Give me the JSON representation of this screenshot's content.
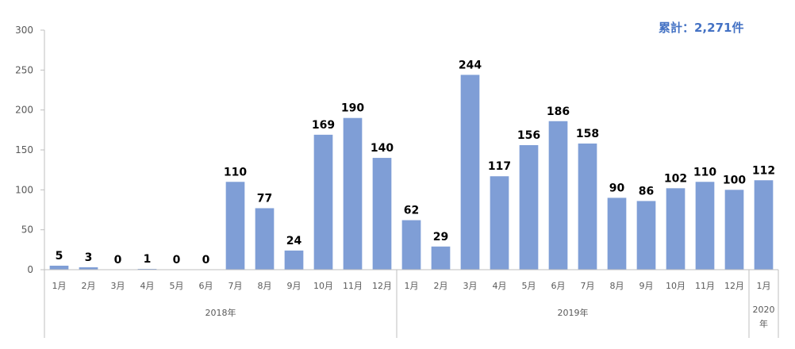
{
  "total_label": "累計：2,271件",
  "colors": {
    "bar": "#7F9ED6",
    "axis": "#BFBFBF",
    "text": "#595959",
    "total": "#4472C4"
  },
  "chart_data": {
    "type": "bar",
    "title": "",
    "xlabel": "",
    "ylabel": "",
    "ylim": [
      0,
      300
    ],
    "yticks": [
      0,
      50,
      100,
      150,
      200,
      250,
      300
    ],
    "grid": false,
    "categories": [
      "1月",
      "2月",
      "3月",
      "4月",
      "5月",
      "6月",
      "7月",
      "8月",
      "9月",
      "10月",
      "11月",
      "12月",
      "1月",
      "2月",
      "3月",
      "4月",
      "5月",
      "6月",
      "7月",
      "8月",
      "9月",
      "10月",
      "11月",
      "12月",
      "1月"
    ],
    "values": [
      5,
      3,
      0,
      1,
      0,
      0,
      110,
      77,
      24,
      169,
      190,
      140,
      62,
      29,
      244,
      117,
      156,
      186,
      158,
      90,
      86,
      102,
      110,
      100,
      112
    ],
    "groups": [
      {
        "label": "2018年",
        "start": 0,
        "end": 11
      },
      {
        "label": "2019年",
        "start": 12,
        "end": 23
      },
      {
        "label": "2020年",
        "start": 24,
        "end": 24
      }
    ]
  }
}
